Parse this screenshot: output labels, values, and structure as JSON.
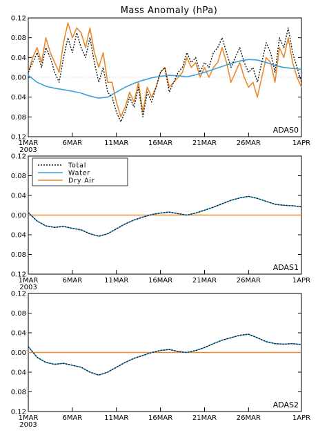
{
  "chart_data": {
    "type": "line",
    "title": "Mass Anomaly (hPa)",
    "ylim": [
      -0.12,
      0.12
    ],
    "y_ticks": [
      0.12,
      0.08,
      0.04,
      0.0,
      -0.04,
      -0.08,
      -0.12
    ],
    "y_tick_labels": [
      "0.12",
      "0.08",
      "0.04",
      "0.00",
      "0.04",
      "0.08",
      "0.12"
    ],
    "x_range": [
      0,
      31
    ],
    "x_ticks": [
      0,
      5,
      10,
      15,
      20,
      25,
      31
    ],
    "x_tick_labels": [
      "1MAR",
      "6MAR",
      "11MAR",
      "16MAR",
      "21MAR",
      "26MAR",
      "1APR"
    ],
    "x_year_label": "2003",
    "legend": [
      {
        "name": "Total",
        "color": "#111111",
        "style": "dotted"
      },
      {
        "name": "Water",
        "color": "#3aa0d8",
        "style": "solid"
      },
      {
        "name": "Dry Air",
        "color": "#e8892c",
        "style": "solid"
      }
    ],
    "panels": [
      {
        "label": "ADAS0",
        "series": [
          {
            "name": "Total",
            "x": [
              0,
              0.5,
              1,
              1.5,
              2,
              2.5,
              3,
              3.5,
              4,
              4.5,
              5,
              5.5,
              6,
              6.5,
              7,
              7.5,
              8,
              8.5,
              9,
              9.5,
              10,
              10.5,
              11,
              11.5,
              12,
              12.5,
              13,
              13.5,
              14,
              14.5,
              15,
              15.5,
              16,
              16.5,
              17,
              17.5,
              18,
              18.5,
              19,
              19.5,
              20,
              20.5,
              21,
              21.5,
              22,
              22.5,
              23,
              23.5,
              24,
              24.5,
              25,
              25.5,
              26,
              26.5,
              27,
              27.5,
              28,
              28.5,
              29,
              29.5,
              30,
              30.5,
              31
            ],
            "y": [
              0.01,
              0.03,
              0.05,
              0.02,
              0.06,
              0.04,
              0.01,
              -0.01,
              0.04,
              0.08,
              0.05,
              0.09,
              0.06,
              0.04,
              0.08,
              0.03,
              -0.01,
              0.02,
              -0.03,
              -0.04,
              -0.07,
              -0.09,
              -0.07,
              -0.04,
              -0.06,
              -0.02,
              -0.08,
              -0.03,
              -0.05,
              -0.02,
              0.01,
              0.02,
              -0.03,
              -0.01,
              0.01,
              0.02,
              0.05,
              0.03,
              0.04,
              0.01,
              0.03,
              0.02,
              0.05,
              0.06,
              0.08,
              0.05,
              0.02,
              0.04,
              0.06,
              0.03,
              0.01,
              0.02,
              -0.01,
              0.03,
              0.07,
              0.05,
              0.01,
              0.08,
              0.06,
              0.1,
              0.05,
              0.02,
              -0.01
            ]
          },
          {
            "name": "Water",
            "x": [
              0,
              1,
              2,
              3,
              4,
              5,
              6,
              7,
              8,
              9,
              10,
              11,
              12,
              13,
              14,
              15,
              16,
              17,
              18,
              19,
              20,
              21,
              22,
              23,
              24,
              25,
              26,
              27,
              28,
              29,
              30,
              31
            ],
            "y": [
              0.004,
              -0.01,
              -0.018,
              -0.022,
              -0.025,
              -0.028,
              -0.032,
              -0.038,
              -0.042,
              -0.04,
              -0.03,
              -0.02,
              -0.012,
              -0.006,
              -0.001,
              0.002,
              0.004,
              0.003,
              0.001,
              0.005,
              0.01,
              0.016,
              0.022,
              0.028,
              0.033,
              0.036,
              0.035,
              0.03,
              0.024,
              0.02,
              0.018,
              0.016
            ]
          },
          {
            "name": "Dry Air",
            "x": [
              0,
              0.5,
              1,
              1.5,
              2,
              2.5,
              3,
              3.5,
              4,
              4.5,
              5,
              5.5,
              6,
              6.5,
              7,
              7.5,
              8,
              8.5,
              9,
              9.5,
              10,
              10.5,
              11,
              11.5,
              12,
              12.5,
              13,
              13.5,
              14,
              14.5,
              15,
              15.5,
              16,
              16.5,
              17,
              17.5,
              18,
              18.5,
              19,
              19.5,
              20,
              20.5,
              21,
              21.5,
              22,
              22.5,
              23,
              23.5,
              24,
              24.5,
              25,
              25.5,
              26,
              26.5,
              27,
              27.5,
              28,
              28.5,
              29,
              29.5,
              30,
              30.5,
              31
            ],
            "y": [
              0.01,
              0.04,
              0.06,
              0.03,
              0.08,
              0.05,
              0.03,
              0.01,
              0.07,
              0.11,
              0.08,
              0.1,
              0.09,
              0.06,
              0.1,
              0.05,
              0.02,
              0.05,
              -0.01,
              -0.01,
              -0.05,
              -0.08,
              -0.06,
              -0.03,
              -0.05,
              -0.01,
              -0.07,
              -0.02,
              -0.04,
              -0.02,
              0.01,
              0.02,
              -0.02,
              -0.01,
              0.0,
              0.01,
              0.04,
              0.02,
              0.03,
              0.0,
              0.02,
              0.0,
              0.02,
              0.03,
              0.06,
              0.03,
              -0.01,
              0.01,
              0.03,
              0.0,
              -0.02,
              -0.01,
              -0.04,
              0.0,
              0.04,
              0.03,
              -0.01,
              0.06,
              0.04,
              0.08,
              0.03,
              0.0,
              -0.02
            ]
          }
        ]
      },
      {
        "label": "ADAS1",
        "series": [
          {
            "name": "Total",
            "x": [
              0,
              1,
              2,
              3,
              4,
              5,
              6,
              7,
              8,
              9,
              10,
              11,
              12,
              13,
              14,
              15,
              16,
              17,
              18,
              19,
              20,
              21,
              22,
              23,
              24,
              25,
              26,
              27,
              28,
              29,
              30,
              31
            ],
            "y": [
              0.005,
              -0.012,
              -0.022,
              -0.025,
              -0.023,
              -0.027,
              -0.03,
              -0.038,
              -0.043,
              -0.038,
              -0.028,
              -0.018,
              -0.01,
              -0.004,
              0.001,
              0.004,
              0.006,
              0.003,
              0.0,
              0.004,
              0.01,
              0.016,
              0.023,
              0.03,
              0.035,
              0.038,
              0.034,
              0.028,
              0.022,
              0.02,
              0.019,
              0.017
            ]
          },
          {
            "name": "Water",
            "x": [
              0,
              1,
              2,
              3,
              4,
              5,
              6,
              7,
              8,
              9,
              10,
              11,
              12,
              13,
              14,
              15,
              16,
              17,
              18,
              19,
              20,
              21,
              22,
              23,
              24,
              25,
              26,
              27,
              28,
              29,
              30,
              31
            ],
            "y": [
              0.005,
              -0.012,
              -0.022,
              -0.025,
              -0.023,
              -0.027,
              -0.03,
              -0.038,
              -0.043,
              -0.038,
              -0.028,
              -0.018,
              -0.01,
              -0.004,
              0.001,
              0.004,
              0.006,
              0.003,
              0.0,
              0.004,
              0.01,
              0.016,
              0.023,
              0.03,
              0.035,
              0.038,
              0.034,
              0.028,
              0.022,
              0.02,
              0.019,
              0.017
            ]
          },
          {
            "name": "Dry Air",
            "x": [
              0,
              31
            ],
            "y": [
              0.0,
              0.0
            ]
          }
        ]
      },
      {
        "label": "ADAS2",
        "series": [
          {
            "name": "Total",
            "x": [
              0,
              1,
              2,
              3,
              4,
              5,
              6,
              7,
              8,
              9,
              10,
              11,
              12,
              13,
              14,
              15,
              16,
              17,
              18,
              19,
              20,
              21,
              22,
              23,
              24,
              25,
              26,
              27,
              28,
              29,
              30,
              31
            ],
            "y": [
              0.012,
              -0.01,
              -0.02,
              -0.024,
              -0.022,
              -0.026,
              -0.03,
              -0.04,
              -0.046,
              -0.04,
              -0.03,
              -0.02,
              -0.012,
              -0.006,
              0.0,
              0.004,
              0.006,
              0.002,
              0.0,
              0.004,
              0.01,
              0.018,
              0.025,
              0.03,
              0.035,
              0.037,
              0.03,
              0.022,
              0.018,
              0.017,
              0.018,
              0.016
            ]
          },
          {
            "name": "Water",
            "x": [
              0,
              1,
              2,
              3,
              4,
              5,
              6,
              7,
              8,
              9,
              10,
              11,
              12,
              13,
              14,
              15,
              16,
              17,
              18,
              19,
              20,
              21,
              22,
              23,
              24,
              25,
              26,
              27,
              28,
              29,
              30,
              31
            ],
            "y": [
              0.012,
              -0.01,
              -0.02,
              -0.024,
              -0.022,
              -0.026,
              -0.03,
              -0.04,
              -0.046,
              -0.04,
              -0.03,
              -0.02,
              -0.012,
              -0.006,
              0.0,
              0.004,
              0.006,
              0.002,
              0.0,
              0.004,
              0.01,
              0.018,
              0.025,
              0.03,
              0.035,
              0.037,
              0.03,
              0.022,
              0.018,
              0.017,
              0.018,
              0.016
            ]
          },
          {
            "name": "Dry Air",
            "x": [
              0,
              31
            ],
            "y": [
              0.0,
              0.0
            ]
          }
        ]
      }
    ]
  }
}
